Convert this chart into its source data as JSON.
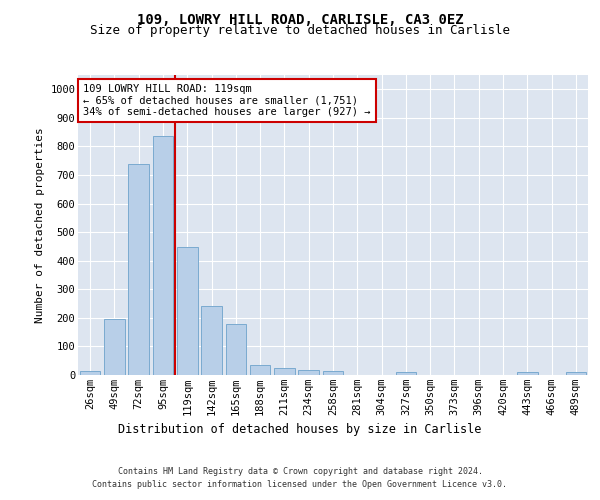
{
  "title1": "109, LOWRY HILL ROAD, CARLISLE, CA3 0EZ",
  "title2": "Size of property relative to detached houses in Carlisle",
  "xlabel": "Distribution of detached houses by size in Carlisle",
  "ylabel": "Number of detached properties",
  "categories": [
    "26sqm",
    "49sqm",
    "72sqm",
    "95sqm",
    "119sqm",
    "142sqm",
    "165sqm",
    "188sqm",
    "211sqm",
    "234sqm",
    "258sqm",
    "281sqm",
    "304sqm",
    "327sqm",
    "350sqm",
    "373sqm",
    "396sqm",
    "420sqm",
    "443sqm",
    "466sqm",
    "489sqm"
  ],
  "values": [
    15,
    197,
    737,
    835,
    448,
    243,
    180,
    35,
    23,
    17,
    13,
    0,
    0,
    10,
    0,
    0,
    0,
    0,
    10,
    0,
    10
  ],
  "bar_color": "#b8cfe8",
  "bar_edge_color": "#7aaad0",
  "vline_color": "#cc0000",
  "annotation_text": "109 LOWRY HILL ROAD: 119sqm\n← 65% of detached houses are smaller (1,751)\n34% of semi-detached houses are larger (927) →",
  "annotation_box_color": "#ffffff",
  "annotation_box_edge": "#cc0000",
  "ylim": [
    0,
    1050
  ],
  "yticks": [
    0,
    100,
    200,
    300,
    400,
    500,
    600,
    700,
    800,
    900,
    1000
  ],
  "background_color": "#dde5f0",
  "footer1": "Contains HM Land Registry data © Crown copyright and database right 2024.",
  "footer2": "Contains public sector information licensed under the Open Government Licence v3.0.",
  "title1_fontsize": 10,
  "title2_fontsize": 9,
  "xlabel_fontsize": 8.5,
  "ylabel_fontsize": 8,
  "tick_fontsize": 7.5,
  "footer_fontsize": 6,
  "annotation_fontsize": 7.5
}
